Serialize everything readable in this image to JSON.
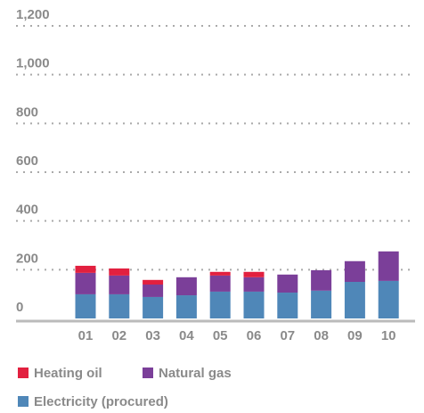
{
  "chart_data": {
    "type": "stacked_bar",
    "categories": [
      "01",
      "02",
      "03",
      "04",
      "05",
      "06",
      "07",
      "08",
      "09",
      "10"
    ],
    "series": [
      {
        "name": "Heating oil",
        "color": "#e2203f",
        "values": [
          29,
          29,
          19,
          0,
          15,
          22,
          0,
          0,
          0,
          0
        ]
      },
      {
        "name": "Natural gas",
        "color": "#7b3f99",
        "values": [
          88,
          77,
          51,
          74,
          66,
          59,
          74,
          84,
          85,
          121
        ]
      },
      {
        "name": "Electricity (procured)",
        "color": "#4f87b8",
        "values": [
          99,
          99,
          88,
          95,
          110,
          110,
          106,
          114,
          150,
          154
        ]
      }
    ],
    "ylim": [
      0,
      1200
    ],
    "yticks": [
      0,
      200,
      400,
      600,
      800,
      {
        "value": 1000,
        "label": "1,000"
      },
      {
        "value": 1200,
        "label": "1,200"
      }
    ],
    "grid": true
  }
}
